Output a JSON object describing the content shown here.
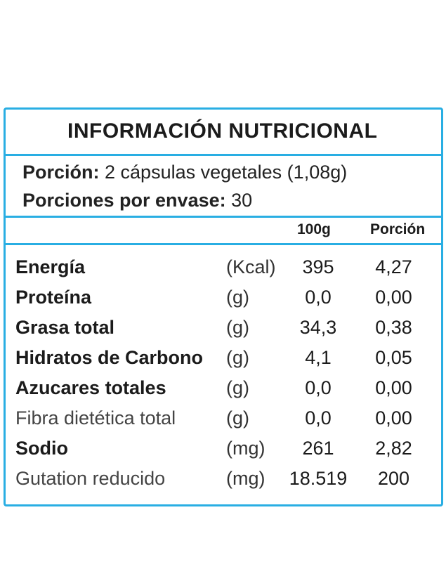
{
  "title": "INFORMACIÓN  NUTRICIONAL",
  "serving": {
    "portion_label": "Porción:",
    "portion_value": " 2 cápsulas vegetales (1,08g)",
    "servings_label": "Porciones por envase:",
    "servings_value": " 30"
  },
  "columns": {
    "per100": "100g",
    "per_portion": "Porción"
  },
  "rows": [
    {
      "name": "Energía",
      "unit": "(Kcal)",
      "per100": "395",
      "per_portion": "4,27",
      "bold": true
    },
    {
      "name": "Proteína",
      "unit": "(g)",
      "per100": "0,0",
      "per_portion": "0,00",
      "bold": true
    },
    {
      "name": "Grasa total",
      "unit": "(g)",
      "per100": "34,3",
      "per_portion": "0,38",
      "bold": true
    },
    {
      "name": "Hidratos de Carbono",
      "unit": "(g)",
      "per100": "4,1",
      "per_portion": "0,05",
      "bold": true
    },
    {
      "name": "Azucares totales",
      "unit": "(g)",
      "per100": "0,0",
      "per_portion": "0,00",
      "bold": true
    },
    {
      "name": "Fibra dietética total",
      "unit": "(g)",
      "per100": "0,0",
      "per_portion": "0,00",
      "bold": false
    },
    {
      "name": "Sodio",
      "unit": "(mg)",
      "per100": "261",
      "per_portion": "2,82",
      "bold": true
    },
    {
      "name": "Gutation reducido",
      "unit": "(mg)",
      "per100": "18.519",
      "per_portion": "200",
      "bold": false
    }
  ],
  "colors": {
    "border": "#29aee3",
    "text": "#1b1b1b"
  }
}
